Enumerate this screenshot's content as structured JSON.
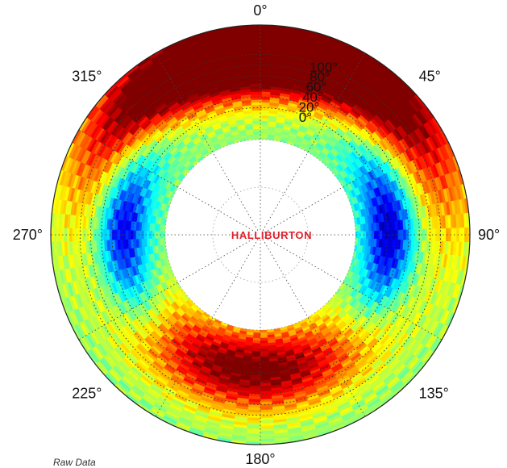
{
  "logo": {
    "text": "HALLIBURTON",
    "color": "#e0202a"
  },
  "footer": {
    "text": "Raw Data"
  },
  "chart_data": {
    "type": "heatmap",
    "projection": "polar",
    "angular_direction": "clockwise",
    "zero_location": "top",
    "angular_ticks": [
      "0°",
      "45°",
      "90°",
      "135°",
      "180°",
      "225°",
      "270°",
      "315°"
    ],
    "angular_tick_values": [
      0,
      45,
      90,
      135,
      180,
      225,
      270,
      315
    ],
    "radial_ticks": [
      "0°",
      "20°",
      "40°",
      "60°",
      "80°",
      "100°"
    ],
    "radial_tick_values": [
      0,
      20,
      40,
      60,
      80,
      100
    ],
    "radial_range": [
      -60,
      155
    ],
    "colormap": "jet",
    "colormap_stops": [
      "#00008f",
      "#0000ff",
      "#0080ff",
      "#00ffff",
      "#80ff80",
      "#ffff00",
      "#ff8000",
      "#ff0000",
      "#800000"
    ],
    "grid": true,
    "grid_style": "dotted",
    "hot_spots": [
      {
        "angle": 345,
        "radius": 90,
        "level": "high"
      },
      {
        "angle": 20,
        "radius": 120,
        "level": "high"
      },
      {
        "angle": 185,
        "radius": 15,
        "level": "high"
      },
      {
        "angle": 270,
        "radius": 20,
        "level": "low"
      },
      {
        "angle": 90,
        "radius": 5,
        "level": "low"
      }
    ]
  }
}
